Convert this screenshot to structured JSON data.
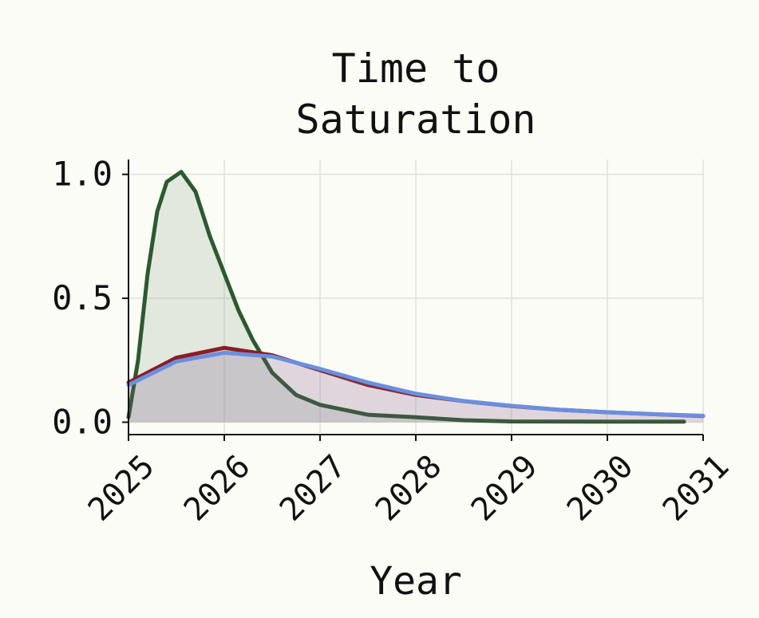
{
  "chart_data": {
    "type": "line",
    "title": [
      "Time to",
      "Saturation"
    ],
    "xlabel": "Year",
    "xlim": [
      2025,
      2031
    ],
    "xticks": [
      2025,
      2026,
      2027,
      2028,
      2029,
      2030,
      2031
    ],
    "ylim": [
      -0.05,
      1.06
    ],
    "yticks": [
      {
        "value": 0,
        "label": "0.0"
      },
      0.5,
      {
        "value": 1,
        "label": "1.0"
      }
    ],
    "grid": true,
    "fill_under": true,
    "series": [
      {
        "color": "#2c5a2e",
        "x": [
          2025,
          2025.1,
          2025.2,
          2025.3,
          2025.4,
          2025.55,
          2025.7,
          2025.85,
          2026,
          2026.15,
          2026.3,
          2026.5,
          2026.75,
          2027,
          2027.5,
          2028,
          2028.5,
          2029,
          2030,
          2030.8
        ],
        "values": [
          0.02,
          0.25,
          0.6,
          0.85,
          0.97,
          1.01,
          0.93,
          0.75,
          0.6,
          0.45,
          0.33,
          0.2,
          0.11,
          0.07,
          0.03,
          0.02,
          0.008,
          0.003,
          0.002,
          0.002
        ]
      },
      {
        "color": "#8b1e22",
        "x": [
          2025,
          2025.5,
          2026,
          2026.5,
          2027,
          2027.5,
          2028,
          2028.5,
          2029,
          2029.5,
          2030,
          2030.5,
          2031
        ],
        "values": [
          0.16,
          0.26,
          0.3,
          0.27,
          0.21,
          0.15,
          0.11,
          0.085,
          0.065,
          0.05,
          0.04,
          0.032,
          0.025
        ]
      },
      {
        "color": "#6b8fe0",
        "x": [
          2025,
          2025.5,
          2026,
          2026.5,
          2027,
          2027.5,
          2028,
          2028.5,
          2029,
          2029.5,
          2030,
          2030.5,
          2031
        ],
        "values": [
          0.15,
          0.245,
          0.28,
          0.265,
          0.215,
          0.16,
          0.115,
          0.085,
          0.066,
          0.05,
          0.04,
          0.032,
          0.026
        ]
      }
    ]
  }
}
